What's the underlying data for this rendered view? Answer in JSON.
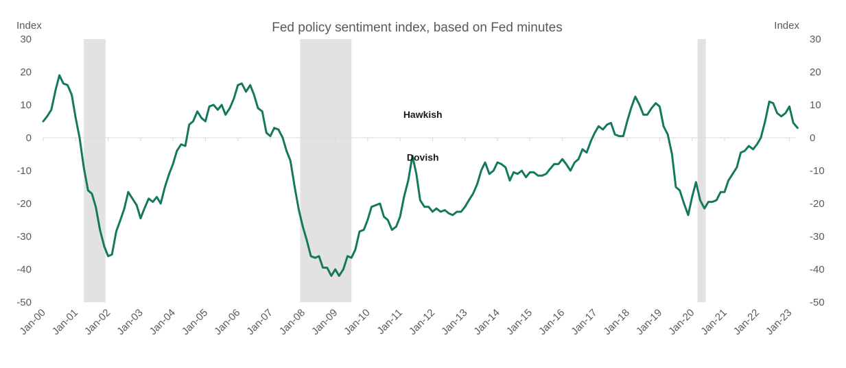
{
  "chart_data": {
    "type": "line",
    "title": "Fed policy sentiment index, based on Fed minutes",
    "y_unit_left": "Index",
    "y_unit_right": "Index",
    "ylim": [
      -50,
      30
    ],
    "y_ticks": [
      30,
      20,
      10,
      0,
      -10,
      -20,
      -30,
      -40,
      -50
    ],
    "xlim": [
      2000.0,
      2023.2
    ],
    "x_ticks": [
      {
        "x": 2000,
        "label": "Jan-00"
      },
      {
        "x": 2001,
        "label": "Jan-01"
      },
      {
        "x": 2002,
        "label": "Jan-02"
      },
      {
        "x": 2003,
        "label": "Jan-03"
      },
      {
        "x": 2004,
        "label": "Jan-04"
      },
      {
        "x": 2005,
        "label": "Jan-05"
      },
      {
        "x": 2006,
        "label": "Jan-06"
      },
      {
        "x": 2007,
        "label": "Jan-07"
      },
      {
        "x": 2008,
        "label": "Jan-08"
      },
      {
        "x": 2009,
        "label": "Jan-09"
      },
      {
        "x": 2010,
        "label": "Jan-10"
      },
      {
        "x": 2011,
        "label": "Jan-11"
      },
      {
        "x": 2012,
        "label": "Jan-12"
      },
      {
        "x": 2013,
        "label": "Jan-13"
      },
      {
        "x": 2014,
        "label": "Jan-14"
      },
      {
        "x": 2015,
        "label": "Jan-15"
      },
      {
        "x": 2016,
        "label": "Jan-16"
      },
      {
        "x": 2017,
        "label": "Jan-17"
      },
      {
        "x": 2018,
        "label": "Jan-18"
      },
      {
        "x": 2019,
        "label": "Jan-19"
      },
      {
        "x": 2020,
        "label": "Jan-20"
      },
      {
        "x": 2021,
        "label": "Jan-21"
      },
      {
        "x": 2022,
        "label": "Jan-22"
      },
      {
        "x": 2023,
        "label": "Jan-23"
      }
    ],
    "recessions": [
      [
        2001.25,
        2001.92
      ],
      [
        2007.92,
        2009.5
      ],
      [
        2020.17,
        2020.42
      ]
    ],
    "annotations": [
      {
        "text": "Hawkish",
        "x": 2011.7,
        "y": 6
      },
      {
        "text": "Dovish",
        "x": 2011.7,
        "y": -7
      }
    ],
    "grid": false,
    "colors": {
      "line": "#14785f",
      "recession": "#e2e2e2",
      "zero_line": "#d9d9d9"
    },
    "series": [
      {
        "points": [
          [
            2000.0,
            5
          ],
          [
            2000.12,
            6.5
          ],
          [
            2000.25,
            8.5
          ],
          [
            2000.38,
            14.5
          ],
          [
            2000.5,
            19
          ],
          [
            2000.62,
            16.5
          ],
          [
            2000.75,
            16
          ],
          [
            2000.88,
            13
          ],
          [
            2001.0,
            6
          ],
          [
            2001.12,
            0
          ],
          [
            2001.25,
            -9
          ],
          [
            2001.38,
            -16
          ],
          [
            2001.5,
            -17
          ],
          [
            2001.62,
            -21
          ],
          [
            2001.75,
            -28
          ],
          [
            2001.88,
            -33
          ],
          [
            2002.0,
            -36
          ],
          [
            2002.12,
            -35.5
          ],
          [
            2002.25,
            -28.5
          ],
          [
            2002.38,
            -25
          ],
          [
            2002.5,
            -21.5
          ],
          [
            2002.62,
            -16.5
          ],
          [
            2002.75,
            -18.5
          ],
          [
            2002.88,
            -20.5
          ],
          [
            2003.0,
            -24.5
          ],
          [
            2003.12,
            -21.5
          ],
          [
            2003.25,
            -18.5
          ],
          [
            2003.38,
            -19.5
          ],
          [
            2003.5,
            -18
          ],
          [
            2003.62,
            -20
          ],
          [
            2003.75,
            -15
          ],
          [
            2003.88,
            -11
          ],
          [
            2004.0,
            -8
          ],
          [
            2004.12,
            -4
          ],
          [
            2004.25,
            -2
          ],
          [
            2004.38,
            -2.5
          ],
          [
            2004.5,
            4
          ],
          [
            2004.62,
            5
          ],
          [
            2004.75,
            8
          ],
          [
            2004.88,
            6
          ],
          [
            2005.0,
            5
          ],
          [
            2005.12,
            9.5
          ],
          [
            2005.25,
            10
          ],
          [
            2005.38,
            8.5
          ],
          [
            2005.5,
            10
          ],
          [
            2005.62,
            7
          ],
          [
            2005.75,
            9
          ],
          [
            2005.88,
            12
          ],
          [
            2006.0,
            16
          ],
          [
            2006.12,
            16.5
          ],
          [
            2006.25,
            14
          ],
          [
            2006.38,
            16
          ],
          [
            2006.5,
            13
          ],
          [
            2006.62,
            9
          ],
          [
            2006.75,
            8
          ],
          [
            2006.88,
            1.5
          ],
          [
            2007.0,
            0.5
          ],
          [
            2007.12,
            3
          ],
          [
            2007.25,
            2.5
          ],
          [
            2007.38,
            0
          ],
          [
            2007.5,
            -4
          ],
          [
            2007.62,
            -7
          ],
          [
            2007.75,
            -15
          ],
          [
            2007.88,
            -22
          ],
          [
            2008.0,
            -27
          ],
          [
            2008.12,
            -31
          ],
          [
            2008.25,
            -36
          ],
          [
            2008.38,
            -36.5
          ],
          [
            2008.5,
            -36
          ],
          [
            2008.62,
            -39.5
          ],
          [
            2008.75,
            -39.5
          ],
          [
            2008.88,
            -42
          ],
          [
            2009.0,
            -40
          ],
          [
            2009.12,
            -42
          ],
          [
            2009.25,
            -40
          ],
          [
            2009.38,
            -36
          ],
          [
            2009.5,
            -36.5
          ],
          [
            2009.62,
            -34
          ],
          [
            2009.75,
            -28.5
          ],
          [
            2009.88,
            -28
          ],
          [
            2010.0,
            -25
          ],
          [
            2010.12,
            -21
          ],
          [
            2010.25,
            -20.5
          ],
          [
            2010.38,
            -20
          ],
          [
            2010.5,
            -24
          ],
          [
            2010.62,
            -25
          ],
          [
            2010.75,
            -28
          ],
          [
            2010.88,
            -27
          ],
          [
            2011.0,
            -24
          ],
          [
            2011.12,
            -18
          ],
          [
            2011.25,
            -13
          ],
          [
            2011.38,
            -5.5
          ],
          [
            2011.5,
            -11
          ],
          [
            2011.62,
            -19
          ],
          [
            2011.75,
            -21
          ],
          [
            2011.88,
            -21
          ],
          [
            2012.0,
            -22.5
          ],
          [
            2012.12,
            -21.5
          ],
          [
            2012.25,
            -22.5
          ],
          [
            2012.38,
            -22
          ],
          [
            2012.5,
            -23
          ],
          [
            2012.62,
            -23.5
          ],
          [
            2012.75,
            -22.5
          ],
          [
            2012.88,
            -22.5
          ],
          [
            2013.0,
            -21
          ],
          [
            2013.12,
            -19
          ],
          [
            2013.25,
            -17
          ],
          [
            2013.38,
            -14
          ],
          [
            2013.5,
            -10
          ],
          [
            2013.62,
            -7.5
          ],
          [
            2013.75,
            -11
          ],
          [
            2013.88,
            -10
          ],
          [
            2014.0,
            -7.5
          ],
          [
            2014.12,
            -8
          ],
          [
            2014.25,
            -9
          ],
          [
            2014.38,
            -13
          ],
          [
            2014.5,
            -10.5
          ],
          [
            2014.62,
            -11
          ],
          [
            2014.75,
            -10
          ],
          [
            2014.88,
            -12
          ],
          [
            2015.0,
            -10.5
          ],
          [
            2015.12,
            -10.5
          ],
          [
            2015.25,
            -11.5
          ],
          [
            2015.38,
            -11.5
          ],
          [
            2015.5,
            -11
          ],
          [
            2015.62,
            -9.5
          ],
          [
            2015.75,
            -8
          ],
          [
            2015.88,
            -8
          ],
          [
            2016.0,
            -6.5
          ],
          [
            2016.12,
            -8
          ],
          [
            2016.25,
            -10
          ],
          [
            2016.38,
            -7.5
          ],
          [
            2016.5,
            -6.5
          ],
          [
            2016.62,
            -3.5
          ],
          [
            2016.75,
            -4.5
          ],
          [
            2016.88,
            -1
          ],
          [
            2017.0,
            1.5
          ],
          [
            2017.12,
            3.5
          ],
          [
            2017.25,
            2.5
          ],
          [
            2017.38,
            4
          ],
          [
            2017.5,
            4.5
          ],
          [
            2017.62,
            1
          ],
          [
            2017.75,
            0.5
          ],
          [
            2017.88,
            0.5
          ],
          [
            2018.0,
            5
          ],
          [
            2018.12,
            9
          ],
          [
            2018.25,
            12.5
          ],
          [
            2018.38,
            10
          ],
          [
            2018.5,
            7
          ],
          [
            2018.62,
            7
          ],
          [
            2018.75,
            9
          ],
          [
            2018.88,
            10.5
          ],
          [
            2019.0,
            9.5
          ],
          [
            2019.12,
            3.5
          ],
          [
            2019.25,
            1
          ],
          [
            2019.38,
            -5
          ],
          [
            2019.5,
            -15
          ],
          [
            2019.62,
            -16
          ],
          [
            2019.75,
            -20
          ],
          [
            2019.88,
            -23.5
          ],
          [
            2020.0,
            -18
          ],
          [
            2020.12,
            -13.5
          ],
          [
            2020.25,
            -19
          ],
          [
            2020.38,
            -21.5
          ],
          [
            2020.5,
            -19.5
          ],
          [
            2020.62,
            -19.5
          ],
          [
            2020.75,
            -19
          ],
          [
            2020.88,
            -16.5
          ],
          [
            2021.0,
            -16.5
          ],
          [
            2021.12,
            -13
          ],
          [
            2021.25,
            -11
          ],
          [
            2021.38,
            -9
          ],
          [
            2021.5,
            -4.5
          ],
          [
            2021.62,
            -4
          ],
          [
            2021.75,
            -2.5
          ],
          [
            2021.88,
            -3.5
          ],
          [
            2022.0,
            -2
          ],
          [
            2022.12,
            0
          ],
          [
            2022.25,
            5
          ],
          [
            2022.38,
            11
          ],
          [
            2022.5,
            10.5
          ],
          [
            2022.62,
            7.5
          ],
          [
            2022.75,
            6.5
          ],
          [
            2022.88,
            7.5
          ],
          [
            2023.0,
            9.5
          ],
          [
            2023.12,
            4.5
          ],
          [
            2023.25,
            3
          ]
        ]
      }
    ]
  }
}
